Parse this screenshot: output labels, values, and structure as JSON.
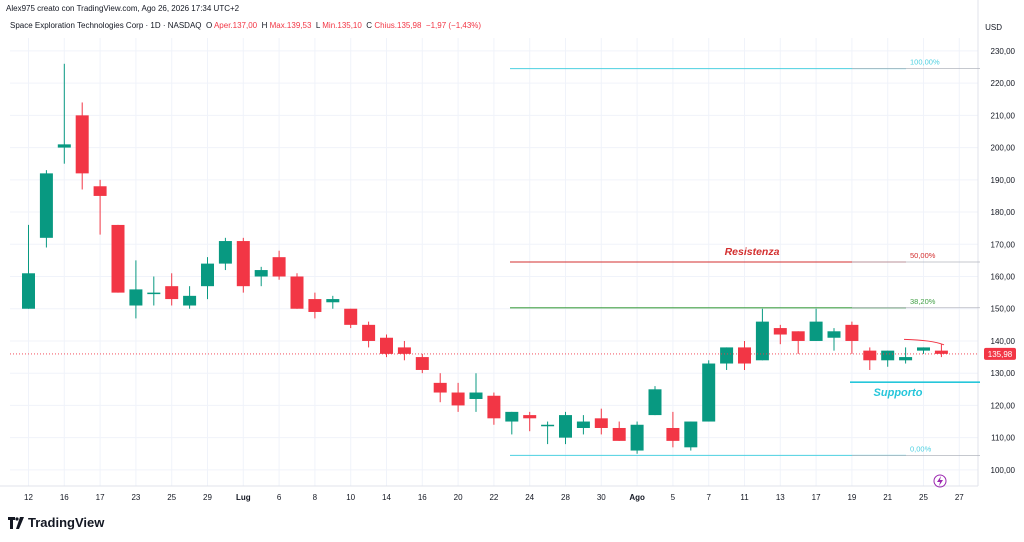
{
  "caption": "Alex975 creato con TradingView.com, Ago 26, 2026 17:34 UTC+2",
  "header": {
    "symbol": "Space Exploration Technologies Corp · 1D · NASDAQ",
    "open_label": "O",
    "open": "Aper.137,00",
    "high_label": "H",
    "high": "Max.139,53",
    "low_label": "L",
    "low": "Min.135,10",
    "close_label": "C",
    "close": "Chius.135,98",
    "change": "−1,97 (−1,43%)"
  },
  "currency": "USD",
  "brand": "TradingView",
  "colors": {
    "up": "#089981",
    "down": "#f23645",
    "fib": "#4dd0e1",
    "resistance": "#d32f2f",
    "support": "#26c6da",
    "fib382": "#43a047"
  },
  "chart_data": {
    "type": "candlestick",
    "ylim": [
      95,
      234
    ],
    "y_ticks": [
      100,
      110,
      120,
      130,
      140,
      150,
      160,
      170,
      180,
      190,
      200,
      210,
      220,
      230
    ],
    "y_tick_labels": [
      "100,00",
      "110,00",
      "120,00",
      "130,00",
      "140,00",
      "150,00",
      "160,00",
      "170,00",
      "180,00",
      "190,00",
      "200,00",
      "210,00",
      "220,00",
      "230,00"
    ],
    "x_tick_labels": [
      {
        "label": "12",
        "i": 0
      },
      {
        "label": "16",
        "i": 2
      },
      {
        "label": "17",
        "i": 4
      },
      {
        "label": "23",
        "i": 6
      },
      {
        "label": "25",
        "i": 8
      },
      {
        "label": "29",
        "i": 10
      },
      {
        "label": "Lug",
        "i": 12
      },
      {
        "label": "6",
        "i": 14
      },
      {
        "label": "8",
        "i": 16
      },
      {
        "label": "10",
        "i": 18
      },
      {
        "label": "14",
        "i": 20
      },
      {
        "label": "16",
        "i": 22
      },
      {
        "label": "20",
        "i": 24
      },
      {
        "label": "22",
        "i": 26
      },
      {
        "label": "24",
        "i": 28
      },
      {
        "label": "28",
        "i": 30
      },
      {
        "label": "30",
        "i": 32
      },
      {
        "label": "Ago",
        "i": 34
      },
      {
        "label": "5",
        "i": 36
      },
      {
        "label": "7",
        "i": 38
      },
      {
        "label": "11",
        "i": 40
      },
      {
        "label": "13",
        "i": 42
      },
      {
        "label": "17",
        "i": 44
      },
      {
        "label": "19",
        "i": 46
      },
      {
        "label": "21",
        "i": 48
      },
      {
        "label": "25",
        "i": 50
      },
      {
        "label": "27",
        "i": 52
      }
    ],
    "candles": [
      {
        "o": 150,
        "h": 176,
        "l": 150,
        "c": 161
      },
      {
        "o": 172,
        "h": 193,
        "l": 169,
        "c": 192
      },
      {
        "o": 200,
        "h": 226,
        "l": 195,
        "c": 201
      },
      {
        "o": 210,
        "h": 214,
        "l": 187,
        "c": 192
      },
      {
        "o": 188,
        "h": 190,
        "l": 173,
        "c": 185
      },
      {
        "o": 176,
        "h": 176,
        "l": 155,
        "c": 155
      },
      {
        "o": 151,
        "h": 165,
        "l": 147,
        "c": 156
      },
      {
        "o": 155,
        "h": 160,
        "l": 151,
        "c": 155
      },
      {
        "o": 157,
        "h": 161,
        "l": 151,
        "c": 153
      },
      {
        "o": 151,
        "h": 157,
        "l": 150,
        "c": 154
      },
      {
        "o": 157,
        "h": 166,
        "l": 153,
        "c": 164
      },
      {
        "o": 164,
        "h": 172,
        "l": 162,
        "c": 171
      },
      {
        "o": 171,
        "h": 172,
        "l": 155,
        "c": 157
      },
      {
        "o": 160,
        "h": 163,
        "l": 157,
        "c": 162
      },
      {
        "o": 166,
        "h": 168,
        "l": 159,
        "c": 160
      },
      {
        "o": 160,
        "h": 161,
        "l": 150,
        "c": 150
      },
      {
        "o": 153,
        "h": 155,
        "l": 147,
        "c": 149
      },
      {
        "o": 152,
        "h": 154,
        "l": 150,
        "c": 153
      },
      {
        "o": 150,
        "h": 150,
        "l": 144,
        "c": 145
      },
      {
        "o": 145,
        "h": 146,
        "l": 138,
        "c": 140
      },
      {
        "o": 141,
        "h": 142,
        "l": 135,
        "c": 136
      },
      {
        "o": 138,
        "h": 140,
        "l": 134,
        "c": 136
      },
      {
        "o": 135,
        "h": 136,
        "l": 130,
        "c": 131
      },
      {
        "o": 127,
        "h": 130,
        "l": 121,
        "c": 124
      },
      {
        "o": 124,
        "h": 127,
        "l": 118,
        "c": 120
      },
      {
        "o": 122,
        "h": 130,
        "l": 118,
        "c": 124
      },
      {
        "o": 123,
        "h": 124,
        "l": 114,
        "c": 116
      },
      {
        "o": 115,
        "h": 118,
        "l": 111,
        "c": 118
      },
      {
        "o": 117,
        "h": 118,
        "l": 112,
        "c": 116
      },
      {
        "o": 114,
        "h": 115,
        "l": 108,
        "c": 114
      },
      {
        "o": 110,
        "h": 118,
        "l": 108,
        "c": 117
      },
      {
        "o": 113,
        "h": 117,
        "l": 111,
        "c": 115
      },
      {
        "o": 116,
        "h": 119,
        "l": 111,
        "c": 113
      },
      {
        "o": 113,
        "h": 115,
        "l": 109,
        "c": 109
      },
      {
        "o": 106,
        "h": 115,
        "l": 105,
        "c": 114
      },
      {
        "o": 117,
        "h": 126,
        "l": 117,
        "c": 125
      },
      {
        "o": 113,
        "h": 118,
        "l": 107,
        "c": 109
      },
      {
        "o": 107,
        "h": 115,
        "l": 106,
        "c": 115
      },
      {
        "o": 115,
        "h": 134,
        "l": 115,
        "c": 133
      },
      {
        "o": 133,
        "h": 138,
        "l": 131,
        "c": 138
      },
      {
        "o": 138,
        "h": 140,
        "l": 131,
        "c": 133
      },
      {
        "o": 134,
        "h": 150,
        "l": 134,
        "c": 146
      },
      {
        "o": 144,
        "h": 145,
        "l": 139,
        "c": 142
      },
      {
        "o": 143,
        "h": 143,
        "l": 136,
        "c": 140
      },
      {
        "o": 140,
        "h": 150,
        "l": 140,
        "c": 146
      },
      {
        "o": 141,
        "h": 144,
        "l": 137,
        "c": 143
      },
      {
        "o": 145,
        "h": 146,
        "l": 136,
        "c": 140
      },
      {
        "o": 137,
        "h": 138,
        "l": 131,
        "c": 134
      },
      {
        "o": 134,
        "h": 137,
        "l": 132,
        "c": 137
      },
      {
        "o": 134,
        "h": 138,
        "l": 133,
        "c": 135
      },
      {
        "o": 137,
        "h": 138,
        "l": 136,
        "c": 138
      },
      {
        "o": 137,
        "h": 139,
        "l": 135,
        "c": 136
      }
    ],
    "fib_levels": [
      {
        "label": "100,00%",
        "value": 224.5
      },
      {
        "label": "50,00%",
        "value": 164.5
      },
      {
        "label": "38,20%",
        "value": 150.3
      },
      {
        "label": "0,00%",
        "value": 104.5
      }
    ],
    "annotations": {
      "resistance": {
        "label": "Resistenza",
        "value": 164.5
      },
      "support": {
        "label": "Supporto",
        "value": 127.2
      }
    },
    "last_price": {
      "label": "135,98",
      "value": 135.98
    }
  }
}
